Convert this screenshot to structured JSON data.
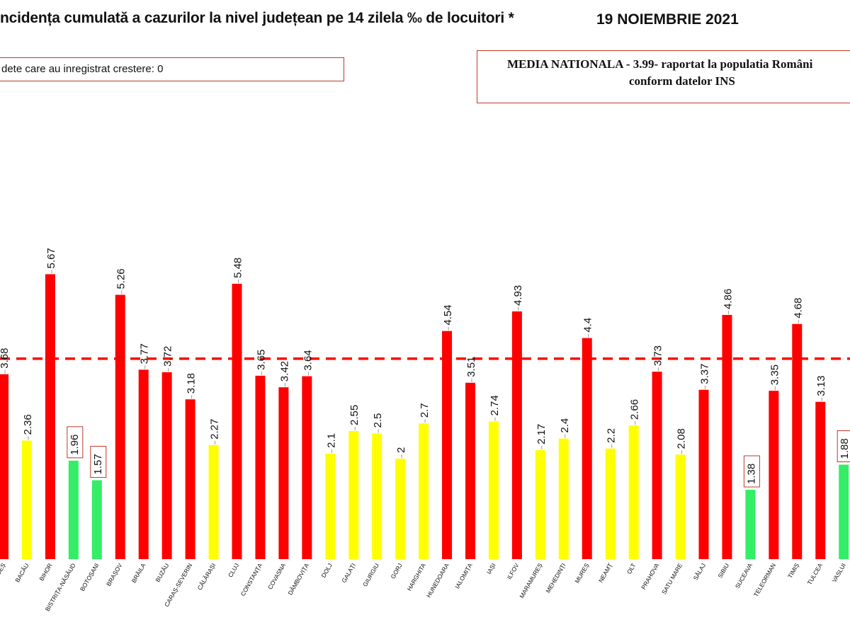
{
  "header": {
    "title": "ncidența cumulată a cazurilor la nivel județean pe 14 zilela ‰ de locuitori *",
    "date": "19 NOIEMBRIE 2021"
  },
  "legend_box": {
    "text": "dete care au inregistrat crestere: 0"
  },
  "national_box": {
    "line1": "MEDIA NATIONALA  - 3.99-  raportat la populatia Români",
    "line2": "conform datelor INS"
  },
  "colors": {
    "red": "#ff0000",
    "yellow": "#ffff00",
    "green": "#33ee66",
    "label_box": "#c0392b"
  },
  "chart_data": {
    "type": "bar",
    "title": "ncidența cumulată a cazurilor la nivel județean pe 14 zilela ‰ de locuitori *",
    "ylim": [
      0,
      8.0
    ],
    "reference_line": {
      "label": "MEDIA NATIONALA",
      "value": 3.99,
      "style": "dashed",
      "color": "#ff0000"
    },
    "categories": [
      "ARGEȘ",
      "BACĂU",
      "BIHOR",
      "BISTRIȚA-NĂSĂUD",
      "BOTOȘANI",
      "BRAȘOV",
      "BRĂILA",
      "BUZĂU",
      "CARAȘ-SEVERIN",
      "CĂLĂRAȘI",
      "CLUJ",
      "CONSTANȚA",
      "COVASNA",
      "DÂMBOVIȚA",
      "DOLJ",
      "GALAȚI",
      "GIURGIU",
      "GORJ",
      "HARGHITA",
      "HUNEDOARA",
      "IALOMIȚA",
      "IAȘI",
      "ILFOV",
      "MARAMUREȘ",
      "MEHEDINȚI",
      "MUREȘ",
      "NEAMȚ",
      "OLT",
      "PRAHOVA",
      "SATU MARE",
      "SĂLAJ",
      "SIBIU",
      "SUCEAVA",
      "TELEORMAN",
      "TIMIȘ",
      "TULCEA",
      "VASLUI"
    ],
    "values": [
      3.68,
      2.36,
      5.67,
      1.96,
      1.57,
      5.26,
      3.77,
      3.72,
      3.18,
      2.27,
      5.48,
      3.65,
      3.42,
      3.64,
      2.1,
      2.55,
      2.5,
      2,
      2.7,
      4.54,
      3.51,
      2.74,
      4.93,
      2.17,
      2.4,
      4.4,
      2.2,
      2.66,
      3.73,
      2.08,
      3.37,
      4.86,
      1.38,
      3.35,
      4.68,
      3.13,
      1.88
    ],
    "value_labels": [
      "3.68",
      "2.36",
      "5.67",
      "1.96",
      "1.57",
      "5.26",
      "3.77",
      "3.72",
      "3.18",
      "2.27",
      "5.48",
      "3.65",
      "3.42",
      "3.64",
      "2.1",
      "2.55",
      "2.5",
      "2",
      "2.7",
      "4.54",
      "3.51",
      "2.74",
      "4.93",
      "2.17",
      "2.4",
      "4.4",
      "2.2",
      "2.66",
      "3.73",
      "2.08",
      "3.37",
      "4.86",
      "1.38",
      "3.35",
      "4.68",
      "3.13",
      "1.88"
    ],
    "tick_labels": [
      "ARGEȘ",
      "BACĂU",
      "BIHOR",
      "BISTRIȚA-NĂSĂUD",
      "BOTOȘANI",
      "BRAȘOV",
      "BRĂILA",
      "BUZĂU",
      "CARAȘ-SEVERIN",
      "CĂLĂRAȘI",
      "CLUJ",
      "CONSTANȚA",
      "COVASNA",
      "DÂMBOVIȚA",
      "DOLJ",
      "GALAȚI",
      "GIURGIU",
      "GORJ",
      "HARGHITA",
      "HUNEDOARA",
      "IALOMIȚA",
      "IAȘI",
      "ILFOV",
      "MARAMUREȘ",
      "MEHEDINȚI",
      "MUREȘ",
      "NEAMȚ",
      "OLT",
      "PRAHOVA",
      "SATU MARE",
      "SĂLAJ",
      "SIBIU",
      "SUCEAVA",
      "TELEORMAN",
      "TIMIȘ",
      "TULCEA",
      "VASLUI"
    ],
    "bar_colors": [
      "red",
      "yellow",
      "red",
      "green",
      "green",
      "red",
      "red",
      "red",
      "red",
      "yellow",
      "red",
      "red",
      "red",
      "red",
      "yellow",
      "yellow",
      "yellow",
      "yellow",
      "yellow",
      "red",
      "red",
      "yellow",
      "red",
      "yellow",
      "yellow",
      "red",
      "yellow",
      "yellow",
      "red",
      "yellow",
      "red",
      "red",
      "green",
      "red",
      "red",
      "red",
      "green"
    ],
    "boxed_labels": [
      "1.96",
      "1.57",
      "1.38",
      "1.88"
    ]
  }
}
